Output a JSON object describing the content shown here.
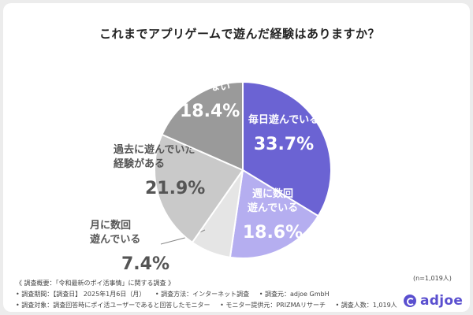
{
  "chart_data": {
    "type": "pie",
    "title": "これまでアプリゲームで遊んだ経験はありますか？",
    "slices": [
      {
        "label_lines": [
          "毎日遊んでいる"
        ],
        "value": 33.7,
        "pct": "33.7%",
        "color": "#6b63d3",
        "text_color": "#ffffff"
      },
      {
        "label_lines": [
          "週に数回",
          "遊んでいる"
        ],
        "value": 18.6,
        "pct": "18.6%",
        "color": "#b5aef0",
        "text_color": "#ffffff"
      },
      {
        "label_lines": [
          "月に数回",
          "遊んでいる"
        ],
        "value": 7.4,
        "pct": "7.4%",
        "color": "#e5e5e5",
        "text_color": "#555555"
      },
      {
        "label_lines": [
          "過去に遊んでいた",
          "経験がある"
        ],
        "value": 21.9,
        "pct": "21.9%",
        "color": "#c9c9c9",
        "text_color": "#555555"
      },
      {
        "label_lines": [
          "遊んだ経験がない"
        ],
        "value": 18.4,
        "pct": "18.4%",
        "color": "#9a9a9a",
        "text_color": "#ffffff"
      }
    ],
    "start": "12 o'clock, clockwise"
  },
  "footer": {
    "overview": "《 調査概要：「令和最新のポイ活事情」に関する調査 》",
    "period": "• 調査期間：【調査日】 2025年1月6日（月）",
    "method": "• 調査方法：インターネット調査",
    "source": "• 調査元：adjoe GmbH",
    "target": "• 調査対象：調査回答時にポイ活ユーザーであると回答したモニター",
    "provider": "• モニター提供元：PRIZMAリサーチ",
    "count": "• 調査人数：1,019人"
  },
  "sample_size": "(n=1,019人)",
  "brand": "adjoe"
}
